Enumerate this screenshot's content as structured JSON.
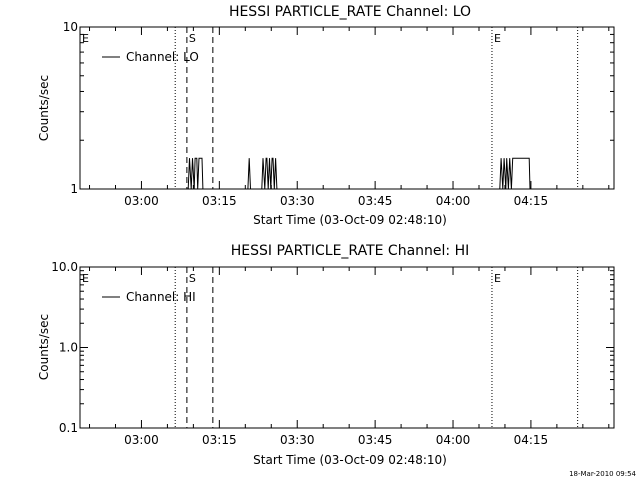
{
  "footer": {
    "timestamp": "18-Mar-2010 09:54"
  },
  "chart_data": [
    {
      "type": "line",
      "title": "HESSI PARTICLE_RATE Channel: LO",
      "xlabel": "Start Time (03-Oct-09 02:48:10)",
      "ylabel": "Counts/sec",
      "x_range": [
        "02:48:10",
        "04:31:00"
      ],
      "x_ticks": [
        "03:00",
        "03:15",
        "03:30",
        "03:45",
        "04:00",
        "04:15"
      ],
      "y_scale": "log",
      "ylim": [
        1,
        10
      ],
      "y_tick_labels": [
        "1",
        "10"
      ],
      "legend": {
        "placement": "top-left",
        "entries": [
          "Channel: LO"
        ]
      },
      "series": [
        {
          "name": "Channel: LO",
          "points": [
            [
              "03:09:00",
              1
            ],
            [
              "03:09:15",
              1.55
            ],
            [
              "03:09:35",
              1
            ],
            [
              "03:09:50",
              1.55
            ],
            [
              "03:10:10",
              1
            ],
            [
              "03:10:20",
              1.55
            ],
            [
              "03:10:40",
              1.55
            ],
            [
              "03:10:50",
              1
            ],
            [
              "03:11:05",
              1.55
            ],
            [
              "03:11:40",
              1.55
            ],
            [
              "03:11:50",
              1
            ],
            [
              "03:20:30",
              1
            ],
            [
              "03:20:45",
              1.55
            ],
            [
              "03:21:00",
              1
            ],
            [
              "03:23:10",
              1
            ],
            [
              "03:23:25",
              1.55
            ],
            [
              "03:23:45",
              1
            ],
            [
              "03:24:00",
              1.55
            ],
            [
              "03:24:10",
              1.55
            ],
            [
              "03:24:25",
              1
            ],
            [
              "03:24:40",
              1.55
            ],
            [
              "03:24:55",
              1
            ],
            [
              "03:25:10",
              1.55
            ],
            [
              "03:25:20",
              1.55
            ],
            [
              "03:25:35",
              1
            ],
            [
              "03:25:50",
              1.55
            ],
            [
              "03:26:05",
              1
            ],
            [
              "04:09:00",
              1
            ],
            [
              "04:09:15",
              1.55
            ],
            [
              "04:09:35",
              1
            ],
            [
              "04:09:50",
              1.55
            ],
            [
              "04:10:10",
              1
            ],
            [
              "04:10:20",
              1.55
            ],
            [
              "04:10:40",
              1
            ],
            [
              "04:10:55",
              1.55
            ],
            [
              "04:11:15",
              1
            ],
            [
              "04:11:30",
              1.55
            ],
            [
              "04:14:40",
              1.55
            ],
            [
              "04:14:50",
              1
            ]
          ]
        }
      ],
      "annotations": [
        {
          "label": "E",
          "time": "02:48:10",
          "style": "dotted",
          "label_only": true
        },
        {
          "label": "",
          "time": "03:06:30",
          "style": "dotted"
        },
        {
          "label": "S",
          "time": "03:08:45",
          "style": "dashed"
        },
        {
          "label": "",
          "time": "03:13:45",
          "style": "dashed"
        },
        {
          "label": "E",
          "time": "04:07:30",
          "style": "dotted"
        },
        {
          "label": "",
          "time": "04:24:00",
          "style": "dotted"
        }
      ]
    },
    {
      "type": "line",
      "title": "HESSI PARTICLE_RATE Channel: HI",
      "xlabel": "Start Time (03-Oct-09 02:48:10)",
      "ylabel": "Counts/sec",
      "x_range": [
        "02:48:10",
        "04:31:00"
      ],
      "x_ticks": [
        "03:00",
        "03:15",
        "03:30",
        "03:45",
        "04:00",
        "04:15"
      ],
      "y_scale": "log",
      "ylim": [
        0.1,
        10
      ],
      "y_tick_labels": [
        "0.1",
        "1.0",
        "10.0"
      ],
      "legend": {
        "placement": "top-left",
        "entries": [
          "Channel: HI"
        ]
      },
      "series": [
        {
          "name": "Channel: HI",
          "points": []
        }
      ],
      "annotations": [
        {
          "label": "E",
          "time": "02:48:10",
          "style": "dotted",
          "label_only": true
        },
        {
          "label": "",
          "time": "03:06:30",
          "style": "dotted"
        },
        {
          "label": "S",
          "time": "03:08:45",
          "style": "dashed"
        },
        {
          "label": "",
          "time": "03:13:45",
          "style": "dashed"
        },
        {
          "label": "E",
          "time": "04:07:30",
          "style": "dotted"
        },
        {
          "label": "",
          "time": "04:24:00",
          "style": "dotted"
        }
      ]
    }
  ]
}
